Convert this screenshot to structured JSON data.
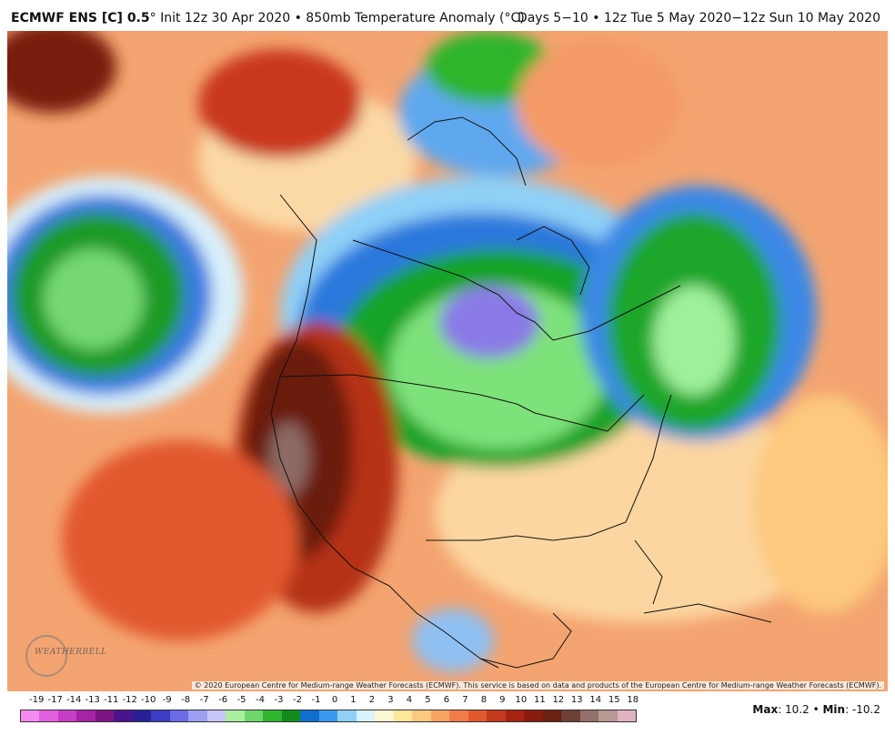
{
  "header": {
    "model": "ECMWF ENS [C] 0.5",
    "degree": "°",
    "init": "Init 12z 30 Apr 2020",
    "bullet": "•",
    "field": "850mb Temperature Anomaly (",
    "unit": "°C",
    "close": ")",
    "valid": "Days 5−10 • 12z Tue 5 May 2020−12z Sun 10 May 2020"
  },
  "copyright": "© 2020 European Centre for Medium-range Weather Forecasts (ECMWF). This service is based on data and products of the European Centre for Medium-range Weather Forecasts (ECMWF).",
  "logo": {
    "text": "WEATHERBELL",
    "icon": "weatherbell-logo-icon"
  },
  "legend": {
    "labels": [
      "-19",
      "-17",
      "-14",
      "-13",
      "-11",
      "-12",
      "-10",
      "-9",
      "-8",
      "-7",
      "-6",
      "-5",
      "-4",
      "-3",
      "-2",
      "-1",
      "0",
      "1",
      "2",
      "3",
      "4",
      "5",
      "6",
      "7",
      "8",
      "9",
      "10",
      "11",
      "12",
      "13",
      "14",
      "15",
      "18"
    ],
    "colors": [
      "#f58bf0",
      "#e35fe0",
      "#c93cc6",
      "#a622a6",
      "#7e1486",
      "#4a148c",
      "#2a1f96",
      "#3d3dc4",
      "#6b6be6",
      "#9e9ef2",
      "#c7c7fa",
      "#a8f0a0",
      "#6fd66a",
      "#2fb52b",
      "#138b1a",
      "#0e6fd1",
      "#3a9aee",
      "#8fd0f7",
      "#d8f3fb",
      "#fbf7d3",
      "#fce79a",
      "#fcc97e",
      "#f9a462",
      "#f07c47",
      "#e2582d",
      "#c43a1c",
      "#a82312",
      "#8a1a0c",
      "#6b2010",
      "#6e4036",
      "#93706a",
      "#b79893",
      "#e1b2c3"
    ]
  },
  "stats": {
    "max_label": "Max",
    "max_value": ": 10.2",
    "sep": " • ",
    "min_label": "Min",
    "min_value": ": -10.2"
  },
  "colors": {
    "very_warm": "#6b1a0c",
    "warm": "#c4341a",
    "mild_warm": "#f07c47",
    "light_warm": "#fcc97e",
    "neutral": "#fbf7d3",
    "light_cool": "#8fd0f7",
    "cool": "#3a9aee",
    "green": "#2fb52b",
    "purple": "#8a7ae6"
  }
}
